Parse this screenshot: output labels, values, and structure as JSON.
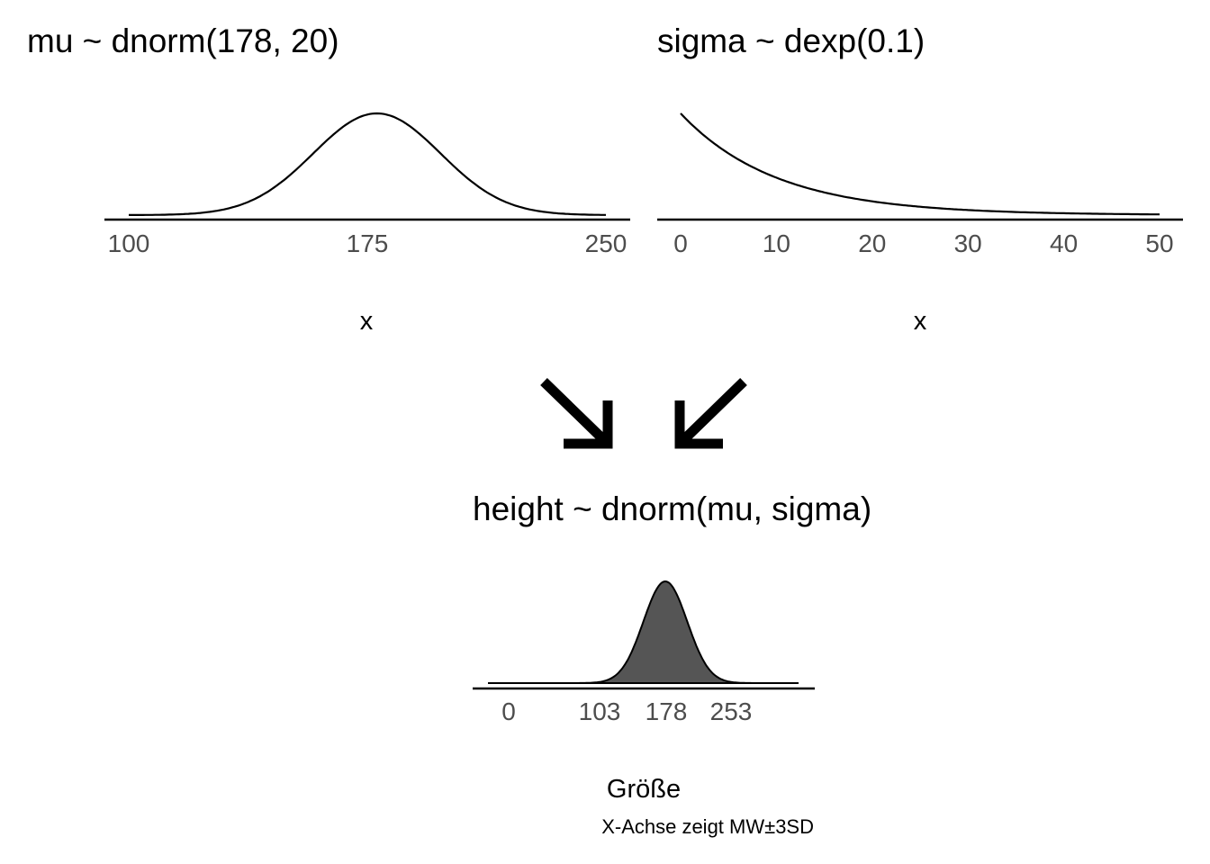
{
  "chart_data": [
    {
      "type": "line",
      "title": "mu ~ dnorm(178, 20)",
      "xlabel": "x",
      "xlim": [
        100,
        250
      ],
      "xticks": [
        100,
        175,
        250
      ],
      "tick_labels": [
        "100",
        "175",
        "250"
      ],
      "distribution": {
        "family": "normal",
        "mean": 178,
        "sd": 20
      },
      "grid": false
    },
    {
      "type": "line",
      "title": "sigma ~ dexp(0.1)",
      "xlabel": "x",
      "xlim": [
        0,
        50
      ],
      "xticks": [
        0,
        10,
        20,
        30,
        40,
        50
      ],
      "tick_labels": [
        "0",
        "10",
        "20",
        "30",
        "40",
        "50"
      ],
      "distribution": {
        "family": "exponential",
        "rate": 0.1
      },
      "grid": false
    },
    {
      "type": "area",
      "title": "height ~ dnorm(mu, sigma)",
      "xlabel": "Größe",
      "caption": "X-Achse zeigt MW±3SD",
      "xlim": [
        0,
        350
      ],
      "xticks": [
        0,
        103,
        178,
        253
      ],
      "tick_labels": [
        "0",
        "103",
        "178",
        "253"
      ],
      "distribution": {
        "family": "normal",
        "mean": 178,
        "sd": 25
      },
      "fill_color": "#555555",
      "grid": false
    }
  ],
  "arrows": [
    "arrow-down-right-icon",
    "arrow-down-left-icon"
  ]
}
